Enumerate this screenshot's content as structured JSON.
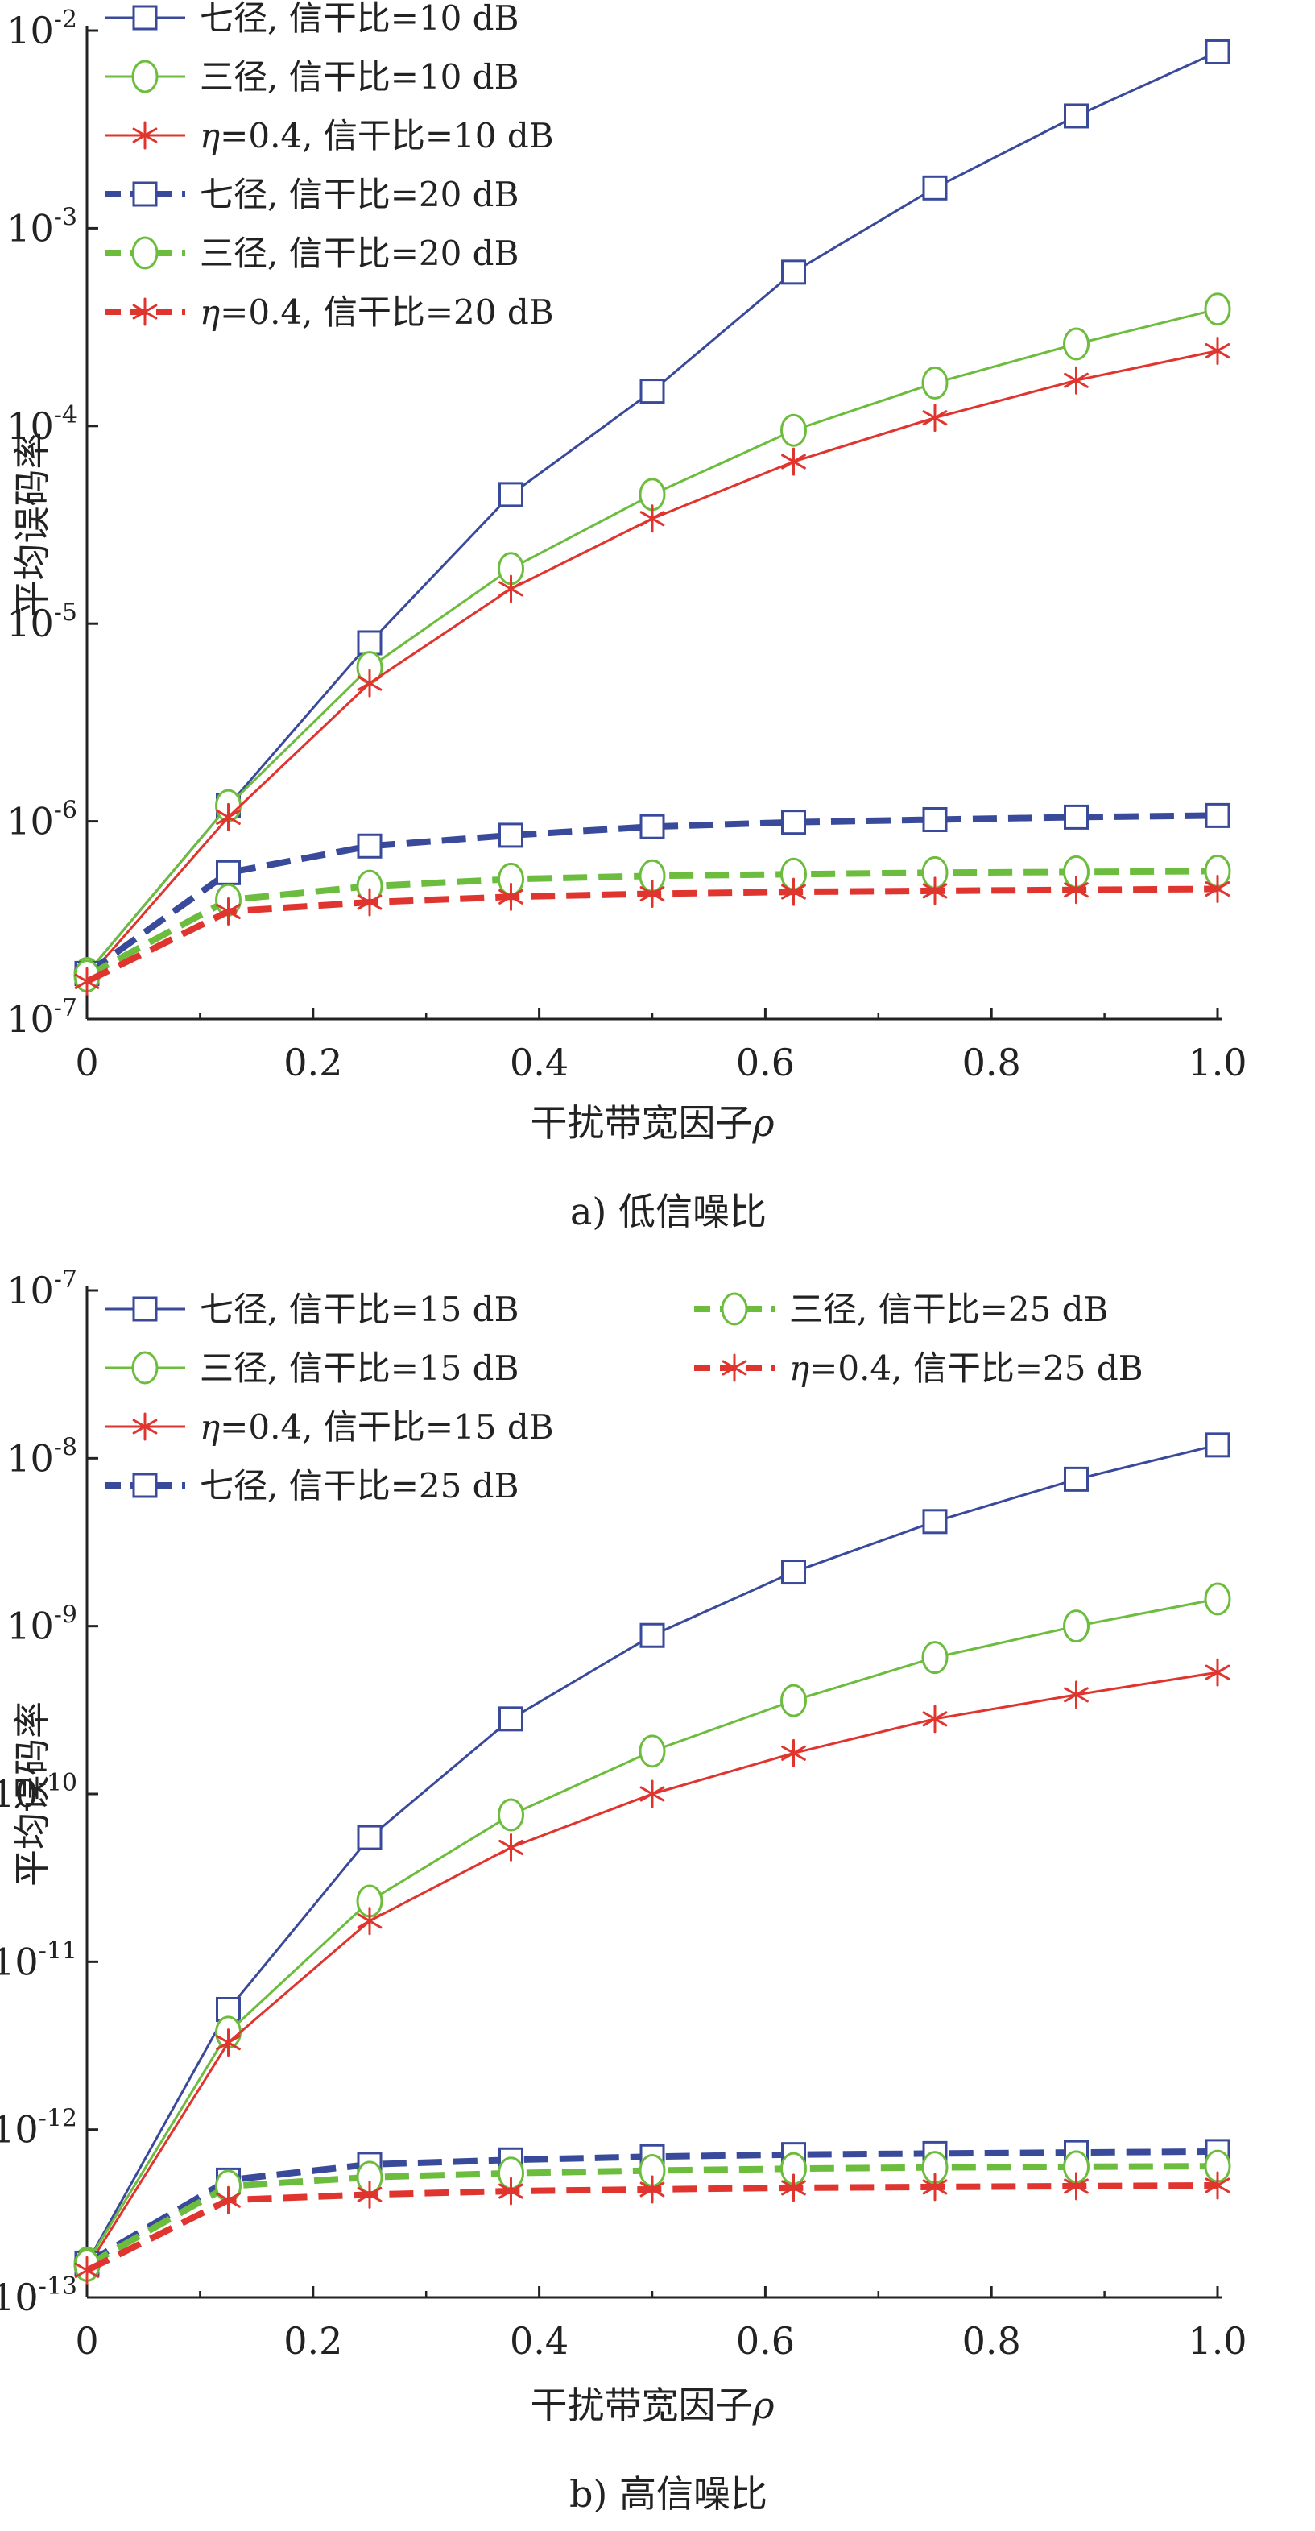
{
  "chart_data": [
    {
      "type": "line",
      "subtitle": "a) 低信噪比",
      "xlabel": "干扰带宽因子ρ",
      "ylabel": "平均误码率",
      "y_scale": "log",
      "xlim": [
        0,
        1.0
      ],
      "ylim_exp": [
        -7,
        -2
      ],
      "x_ticks": [
        "0",
        "0.2",
        "0.4",
        "0.6",
        "0.8",
        "1.0"
      ],
      "y_ticks": [
        {
          "base": "10",
          "exp": "-7"
        },
        {
          "base": "10",
          "exp": "-6"
        },
        {
          "base": "10",
          "exp": "-5"
        },
        {
          "base": "10",
          "exp": "-4"
        },
        {
          "base": "10",
          "exp": "-3"
        },
        {
          "base": "10",
          "exp": "-2"
        }
      ],
      "legend_position": "top-left",
      "x": [
        0,
        0.125,
        0.25,
        0.375,
        0.5,
        0.625,
        0.75,
        0.875,
        1.0
      ],
      "series": [
        {
          "name": "七径, 信干比=10 dB",
          "color": "#3a4a9a",
          "marker": "square",
          "dashed": false,
          "values": [
            1.7e-07,
            1.2e-06,
            8e-06,
            4.5e-05,
            0.00015,
            0.0006,
            0.0016,
            0.0037,
            0.0078
          ]
        },
        {
          "name": "三径, 信干比=10 dB",
          "color": "#6cbc3e",
          "marker": "circle",
          "dashed": false,
          "values": [
            1.7e-07,
            1.2e-06,
            6e-06,
            1.9e-05,
            4.5e-05,
            9.5e-05,
            0.000165,
            0.00026,
            0.00039
          ]
        },
        {
          "name": "η=0.4, 信干比=10 dB",
          "color": "#e0342e",
          "marker": "star",
          "dashed": false,
          "values": [
            1.6e-07,
            1.05e-06,
            5e-06,
            1.5e-05,
            3.4e-05,
            6.6e-05,
            0.00011,
            0.00017,
            0.00024
          ]
        },
        {
          "name": "七径, 信干比=20 dB",
          "color": "#3a4a9a",
          "marker": "square",
          "dashed": true,
          "values": [
            1.7e-07,
            5.5e-07,
            7.5e-07,
            8.5e-07,
            9.4e-07,
            9.9e-07,
            1.02e-06,
            1.05e-06,
            1.07e-06
          ]
        },
        {
          "name": "三径, 信干比=20 dB",
          "color": "#6cbc3e",
          "marker": "circle",
          "dashed": true,
          "values": [
            1.65e-07,
            4e-07,
            4.7e-07,
            5.1e-07,
            5.3e-07,
            5.4e-07,
            5.5e-07,
            5.55e-07,
            5.6e-07
          ]
        },
        {
          "name": "η=0.4, 信干比=20 dB",
          "color": "#e0342e",
          "marker": "star",
          "dashed": true,
          "values": [
            1.55e-07,
            3.5e-07,
            3.9e-07,
            4.15e-07,
            4.3e-07,
            4.4e-07,
            4.45e-07,
            4.5e-07,
            4.55e-07
          ]
        }
      ]
    },
    {
      "type": "line",
      "subtitle": "b) 高信噪比",
      "xlabel": "干扰带宽因子ρ",
      "ylabel": "平均误码率",
      "y_scale": "log",
      "xlim": [
        0,
        1.0
      ],
      "ylim_exp": [
        -13,
        -7
      ],
      "x_ticks": [
        "0",
        "0.2",
        "0.4",
        "0.6",
        "0.8",
        "1.0"
      ],
      "y_ticks": [
        {
          "base": "10",
          "exp": "-13"
        },
        {
          "base": "10",
          "exp": "-12"
        },
        {
          "base": "10",
          "exp": "-11"
        },
        {
          "base": "10",
          "exp": "-10"
        },
        {
          "base": "10",
          "exp": "-9"
        },
        {
          "base": "10",
          "exp": "-8"
        },
        {
          "base": "10",
          "exp": "-7"
        }
      ],
      "legend_position": "top",
      "x": [
        0,
        0.125,
        0.25,
        0.375,
        0.5,
        0.625,
        0.75,
        0.875,
        1.0
      ],
      "series": [
        {
          "name": "七径, 信干比=15 dB",
          "color": "#3a4a9a",
          "marker": "square",
          "dashed": false,
          "values": [
            1.6e-13,
            5.2e-12,
            5.5e-11,
            2.8e-10,
            8.8e-10,
            2.1e-09,
            4.2e-09,
            7.5e-09,
            1.2e-08
          ]
        },
        {
          "name": "三径, 信干比=15 dB",
          "color": "#6cbc3e",
          "marker": "circle",
          "dashed": false,
          "values": [
            1.6e-13,
            3.8e-12,
            2.3e-11,
            7.5e-11,
            1.8e-10,
            3.6e-10,
            6.5e-10,
            1e-09,
            1.45e-09
          ]
        },
        {
          "name": "η=0.4, 信干比=15 dB",
          "color": "#e0342e",
          "marker": "star",
          "dashed": false,
          "values": [
            1.5e-13,
            3.3e-12,
            1.75e-11,
            4.8e-11,
            1e-10,
            1.75e-10,
            2.8e-10,
            3.9e-10,
            5.3e-10
          ]
        },
        {
          "name": "七径, 信干比=25 dB",
          "color": "#3a4a9a",
          "marker": "square",
          "dashed": true,
          "values": [
            1.6e-13,
            5e-13,
            6.2e-13,
            6.6e-13,
            6.9e-13,
            7.1e-13,
            7.2e-13,
            7.3e-13,
            7.4e-13
          ]
        },
        {
          "name": "三径, 信干比=25 dB",
          "color": "#6cbc3e",
          "marker": "circle",
          "dashed": true,
          "values": [
            1.55e-13,
            4.6e-13,
            5.2e-13,
            5.5e-13,
            5.7e-13,
            5.85e-13,
            5.95e-13,
            6e-13,
            6.05e-13
          ]
        },
        {
          "name": "η=0.4, 信干比=25 dB",
          "color": "#e0342e",
          "marker": "star",
          "dashed": true,
          "values": [
            1.45e-13,
            3.8e-13,
            4.1e-13,
            4.3e-13,
            4.4e-13,
            4.5e-13,
            4.55e-13,
            4.6e-13,
            4.65e-13
          ]
        }
      ]
    }
  ]
}
